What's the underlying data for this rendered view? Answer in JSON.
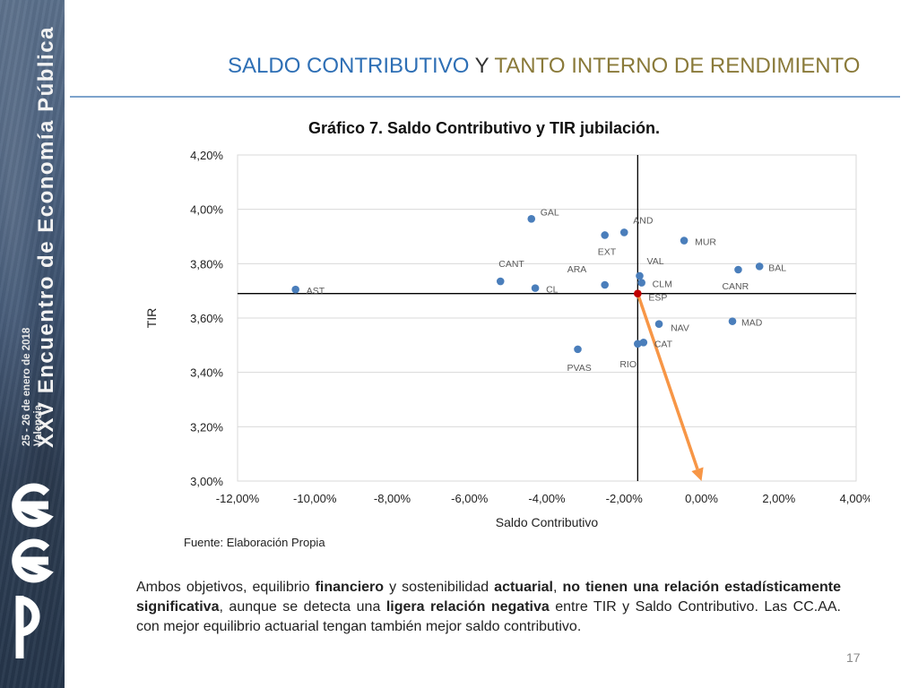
{
  "sidebar": {
    "event_title": "XXV Encuentro de Economía Pública",
    "event_dates": "25 - 26 de enero de 2018",
    "event_city": "Valencia",
    "logo_letters": "eep"
  },
  "slide": {
    "title_part1": "SALDO CONTRIBUTIVO",
    "title_part2": " Y ",
    "title_part3": "TANTO INTERNO DE RENDIMIENTO",
    "page_number": "17",
    "source": "Fuente: Elaboración Propia",
    "body": [
      {
        "t": "Ambos objetivos, equilibrio ",
        "b": false
      },
      {
        "t": "financiero",
        "b": true
      },
      {
        "t": " y sostenibilidad ",
        "b": false
      },
      {
        "t": "actuarial",
        "b": true
      },
      {
        "t": ", ",
        "b": false
      },
      {
        "t": "no tienen una relación estadísticamente significativa",
        "b": true
      },
      {
        "t": ", aunque se detecta una ",
        "b": false
      },
      {
        "t": "ligera relación negativa",
        "b": true
      },
      {
        "t": " entre TIR y Saldo Contributivo. Las CC.AA. con mejor equilibrio actuarial tengan también mejor saldo contributivo.",
        "b": false
      }
    ]
  },
  "colors": {
    "point": "#4a7ebb",
    "highlight_point": "#c00000",
    "arrow": "#f79646",
    "axis_line": "#000000",
    "grid": "#d9d9d9"
  },
  "chart_data": {
    "type": "scatter",
    "title": "Gráfico 7. Saldo Contributivo y TIR jubilación.",
    "xlabel": "Saldo Contributivo",
    "ylabel": "TIR",
    "xlim": [
      -12,
      4
    ],
    "ylim": [
      3.0,
      4.2
    ],
    "xticks": [
      "-12,00%",
      "-10,00%",
      "-8,00%",
      "-6,00%",
      "-4,00%",
      "-2,00%",
      "0,00%",
      "2,00%",
      "4,00%"
    ],
    "yticks": [
      "3,00%",
      "3,20%",
      "3,40%",
      "3,60%",
      "3,80%",
      "4,00%",
      "4,20%"
    ],
    "grid": "horizontal",
    "reference_lines": {
      "x": -1.65,
      "y": 3.69
    },
    "points": [
      {
        "label": "AST",
        "x": -10.5,
        "y": 3.705
      },
      {
        "label": "GAL",
        "x": -4.4,
        "y": 3.965
      },
      {
        "label": "AND",
        "x": -2.0,
        "y": 3.915
      },
      {
        "label": "EXT",
        "x": -2.5,
        "y": 3.905
      },
      {
        "label": "MUR",
        "x": -0.45,
        "y": 3.885
      },
      {
        "label": "CANT",
        "x": -5.2,
        "y": 3.735
      },
      {
        "label": "CL",
        "x": -4.3,
        "y": 3.71
      },
      {
        "label": "ARA",
        "x": -2.5,
        "y": 3.722
      },
      {
        "label": "VAL",
        "x": -1.6,
        "y": 3.755
      },
      {
        "label": "CLM",
        "x": -1.55,
        "y": 3.73
      },
      {
        "label": "BAL",
        "x": 1.5,
        "y": 3.79
      },
      {
        "label": "CANR",
        "x": 0.95,
        "y": 3.778
      },
      {
        "label": "ESP",
        "x": -1.65,
        "y": 3.69,
        "highlight": true
      },
      {
        "label": "NAV",
        "x": -1.1,
        "y": 3.578
      },
      {
        "label": "MAD",
        "x": 0.8,
        "y": 3.588
      },
      {
        "label": "CAT",
        "x": -1.5,
        "y": 3.51
      },
      {
        "label": "RIO",
        "x": -1.65,
        "y": 3.505
      },
      {
        "label": "PVAS",
        "x": -3.2,
        "y": 3.485
      }
    ],
    "arrow": {
      "from": [
        -1.65,
        3.69
      ],
      "to": [
        0.0,
        3.0
      ]
    }
  }
}
